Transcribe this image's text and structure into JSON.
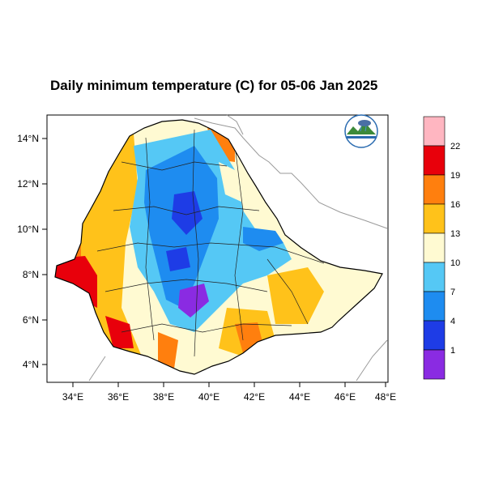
{
  "title": "Daily minimum temperature (C) for 05-06 Jan 2025",
  "lat_ticks": [
    "14°N",
    "12°N",
    "10°N",
    "8°N",
    "6°N",
    "4°N"
  ],
  "lon_ticks": [
    "34°E",
    "36°E",
    "38°E",
    "40°E",
    "42°E",
    "44°E",
    "46°E",
    "48°E"
  ],
  "colorbar": {
    "colors": [
      "#8a2be2",
      "#1e3ce6",
      "#1e8cf0",
      "#55c8f5",
      "#fffad2",
      "#ffc21a",
      "#ff7f0e",
      "#e8000b",
      "#ffb6c1"
    ],
    "labels": [
      "1",
      "4",
      "7",
      "10",
      "13",
      "16",
      "19",
      "22"
    ]
  },
  "logo": {
    "name": "ethiopian-meteorology-institute-logo"
  }
}
